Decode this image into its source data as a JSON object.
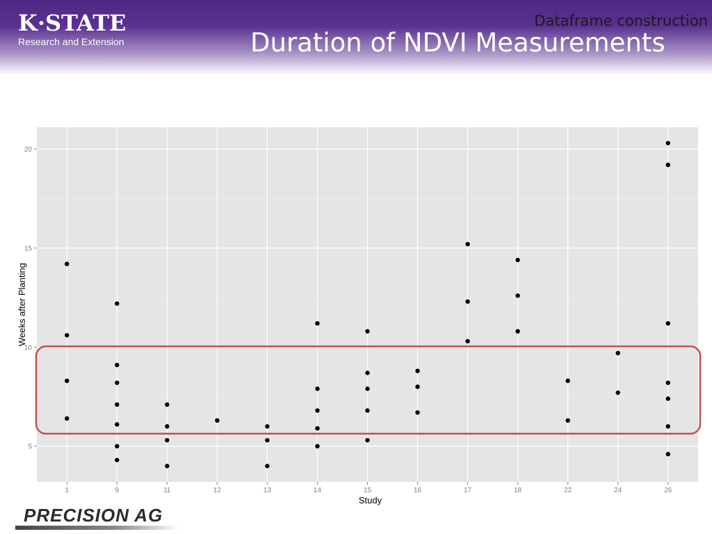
{
  "header": {
    "logo_main": "K·STATE",
    "logo_sub": "Research and Extension",
    "section_label": "Dataframe construction",
    "slide_title": "Duration of NDVI Measurements"
  },
  "footer": {
    "logo_text": "PRECISION AG"
  },
  "colors": {
    "panel_bg": "#e5e5e5",
    "grid": "#ffffff",
    "point": "#000000",
    "highlight_box": "#c0504d",
    "header_purple": "#4f2683"
  },
  "chart_data": {
    "type": "scatter",
    "title": "",
    "xlabel": "Study",
    "ylabel": "Weeks after Planting",
    "categories": [
      "1",
      "9",
      "11",
      "12",
      "13",
      "14",
      "15",
      "16",
      "17",
      "18",
      "22",
      "24",
      "26"
    ],
    "ylim": [
      3.2,
      21.1
    ],
    "yticks": [
      5,
      10,
      15,
      20
    ],
    "grid": true,
    "series": [
      {
        "points": [
          {
            "x": "1",
            "y": 14.2
          },
          {
            "x": "1",
            "y": 10.6
          },
          {
            "x": "1",
            "y": 8.3
          },
          {
            "x": "1",
            "y": 6.4
          },
          {
            "x": "9",
            "y": 12.2
          },
          {
            "x": "9",
            "y": 9.1
          },
          {
            "x": "9",
            "y": 8.2
          },
          {
            "x": "9",
            "y": 7.1
          },
          {
            "x": "9",
            "y": 6.1
          },
          {
            "x": "9",
            "y": 5.0
          },
          {
            "x": "9",
            "y": 4.3
          },
          {
            "x": "11",
            "y": 7.1
          },
          {
            "x": "11",
            "y": 6.0
          },
          {
            "x": "11",
            "y": 5.3
          },
          {
            "x": "11",
            "y": 4.0
          },
          {
            "x": "12",
            "y": 6.3
          },
          {
            "x": "13",
            "y": 6.0
          },
          {
            "x": "13",
            "y": 5.3
          },
          {
            "x": "13",
            "y": 4.0
          },
          {
            "x": "14",
            "y": 11.2
          },
          {
            "x": "14",
            "y": 7.9
          },
          {
            "x": "14",
            "y": 6.8
          },
          {
            "x": "14",
            "y": 5.9
          },
          {
            "x": "14",
            "y": 5.0
          },
          {
            "x": "15",
            "y": 10.8
          },
          {
            "x": "15",
            "y": 8.7
          },
          {
            "x": "15",
            "y": 7.9
          },
          {
            "x": "15",
            "y": 6.8
          },
          {
            "x": "15",
            "y": 5.3
          },
          {
            "x": "16",
            "y": 8.8
          },
          {
            "x": "16",
            "y": 8.0
          },
          {
            "x": "16",
            "y": 6.7
          },
          {
            "x": "17",
            "y": 15.2
          },
          {
            "x": "17",
            "y": 12.3
          },
          {
            "x": "17",
            "y": 10.3
          },
          {
            "x": "18",
            "y": 14.4
          },
          {
            "x": "18",
            "y": 12.6
          },
          {
            "x": "18",
            "y": 10.8
          },
          {
            "x": "22",
            "y": 8.3
          },
          {
            "x": "22",
            "y": 6.3
          },
          {
            "x": "24",
            "y": 9.7
          },
          {
            "x": "24",
            "y": 7.7
          },
          {
            "x": "26",
            "y": 20.3
          },
          {
            "x": "26",
            "y": 19.2
          },
          {
            "x": "26",
            "y": 11.2
          },
          {
            "x": "26",
            "y": 8.2
          },
          {
            "x": "26",
            "y": 7.4
          },
          {
            "x": "26",
            "y": 6.0
          },
          {
            "x": "26",
            "y": 4.6
          }
        ]
      }
    ],
    "highlight_range": [
      5.7,
      9.9
    ]
  }
}
